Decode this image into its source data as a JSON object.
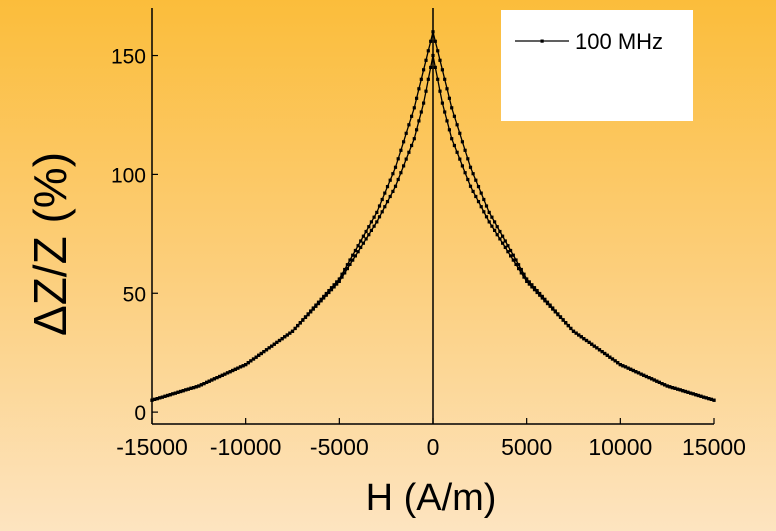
{
  "chart_data": {
    "type": "line",
    "xlabel": "H (A/m)",
    "ylabel": "ΔZ/Z (%)",
    "xlim": [
      -15000,
      15000
    ],
    "ylim": [
      -5,
      170
    ],
    "x_ticks": [
      -15000,
      -10000,
      -5000,
      0,
      5000,
      10000,
      15000
    ],
    "x_tick_labels": [
      "-15000",
      "-10000",
      "-5000",
      "0",
      "5000",
      "10000",
      "15000"
    ],
    "y_ticks": [
      0,
      50,
      100,
      150
    ],
    "y_tick_labels": [
      "0",
      "50",
      "100",
      "150"
    ],
    "grid": false,
    "legend_position": "top-right",
    "series": [
      {
        "name": "100 MHz",
        "color": "#000000",
        "marker": "square",
        "x": [
          -15000,
          -12500,
          -10000,
          -7500,
          -5000,
          -3000,
          -2000,
          -1000,
          -500,
          0,
          500,
          1000,
          2000,
          3000,
          5000,
          7500,
          10000,
          12500,
          15000
        ],
        "y_upper": [
          5,
          11,
          20,
          34,
          56,
          84,
          103,
          128,
          144,
          160,
          144,
          128,
          103,
          84,
          56,
          34,
          20,
          11,
          5
        ],
        "y_lower": [
          5,
          11,
          20,
          34,
          55,
          80,
          95,
          115,
          130,
          150,
          130,
          115,
          95,
          80,
          55,
          34,
          20,
          11,
          5
        ]
      }
    ]
  }
}
